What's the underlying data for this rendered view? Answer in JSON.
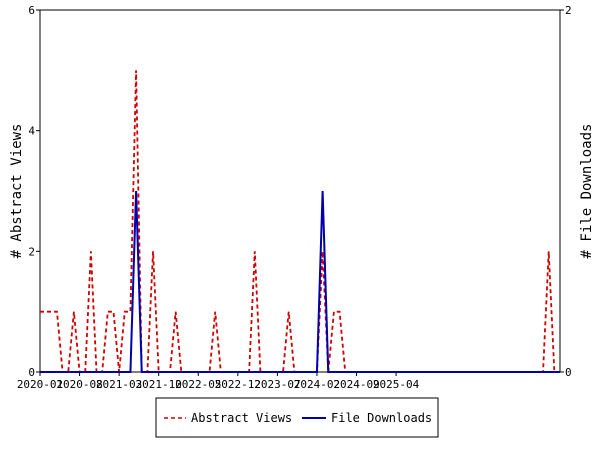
{
  "chart_data": {
    "type": "line",
    "x_tick_labels": [
      "2020-01",
      "2020-08",
      "2021-03",
      "2021-10",
      "2022-05",
      "2022-12",
      "2023-07",
      "2024-02",
      "2024-09",
      "2025-04"
    ],
    "yleft": {
      "label": "# Abstract Views",
      "ylim": [
        0,
        6
      ],
      "ticks": [
        "0",
        "2",
        "4",
        "6"
      ]
    },
    "yright": {
      "label": "# File Downloads",
      "ylim": [
        0,
        2
      ],
      "ticks": [
        "0",
        "2"
      ]
    },
    "legend_position": "bottom-center",
    "grid": false,
    "series": [
      {
        "name": "Abstract Views",
        "axis": "left",
        "color": "#cc0000",
        "dash": "dashed",
        "values": [
          1,
          1,
          1,
          1,
          0,
          0,
          1,
          0,
          0,
          2,
          0,
          0,
          1,
          1,
          0,
          1,
          1,
          5,
          0,
          0,
          2,
          0,
          0,
          0,
          1,
          0,
          0,
          0,
          0,
          0,
          0,
          1,
          0,
          0,
          0,
          0,
          0,
          0,
          2,
          0,
          0,
          0,
          0,
          0,
          1,
          0,
          0,
          0,
          0,
          0,
          2,
          0,
          1,
          1,
          0,
          0,
          0,
          0,
          0,
          0,
          0,
          0,
          0,
          0,
          0,
          0,
          0,
          0,
          0,
          0,
          0,
          0,
          0,
          0,
          0,
          0,
          0,
          0,
          0,
          0,
          0,
          0,
          0,
          0,
          0,
          0,
          0,
          0,
          0,
          0,
          2,
          0,
          0
        ]
      },
      {
        "name": "File Downloads",
        "axis": "right",
        "color": "#0000aa",
        "dash": "solid",
        "values": [
          0,
          0,
          0,
          0,
          0,
          0,
          0,
          0,
          0,
          0,
          0,
          0,
          0,
          0,
          0,
          0,
          0,
          1,
          0,
          0,
          0,
          0,
          0,
          0,
          0,
          0,
          0,
          0,
          0,
          0,
          0,
          0,
          0,
          0,
          0,
          0,
          0,
          0,
          0,
          0,
          0,
          0,
          0,
          0,
          0,
          0,
          0,
          0,
          0,
          0,
          1,
          0,
          0,
          0,
          0,
          0,
          0,
          0,
          0,
          0,
          0,
          0,
          0,
          0,
          0,
          0,
          0,
          0,
          0,
          0,
          0,
          0,
          0,
          0,
          0,
          0,
          0,
          0,
          0,
          0,
          0,
          0,
          0,
          0,
          0,
          0,
          0,
          0,
          0,
          0,
          0,
          0,
          0
        ]
      }
    ]
  }
}
